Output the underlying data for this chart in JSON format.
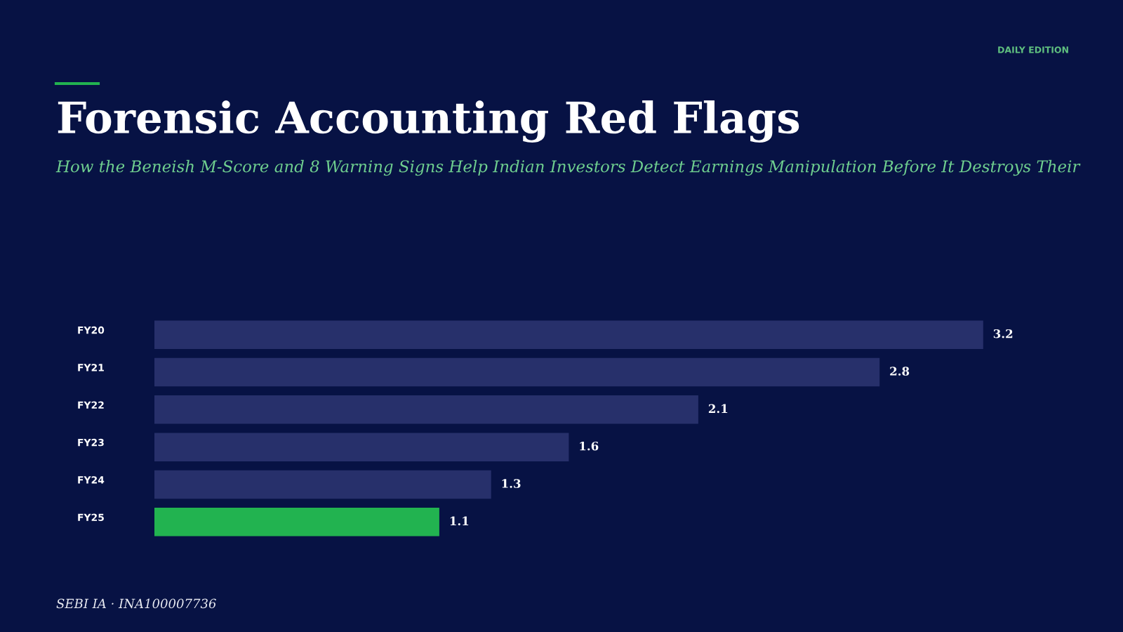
{
  "chart_data": {
    "type": "bar",
    "orientation": "horizontal",
    "title": "Forensic Accounting Red Flags",
    "subtitle": "How the Beneish M-Score and 8 Warning Signs Help Indian Investors Detect Earnings Manipulation Before It Destroys Their",
    "categories": [
      "FY20",
      "FY21",
      "FY22",
      "FY23",
      "FY24",
      "FY25"
    ],
    "values": [
      3.2,
      2.8,
      2.1,
      1.6,
      1.3,
      1.1
    ],
    "colors": [
      "#27306b",
      "#27306b",
      "#27306b",
      "#27306b",
      "#27306b",
      "#22b350"
    ],
    "data_labels": true,
    "tick_labels": false,
    "grid": false,
    "legend": false,
    "annotations": [
      "DAILY EDITION",
      "SEBI IA · INA100007736"
    ]
  }
}
